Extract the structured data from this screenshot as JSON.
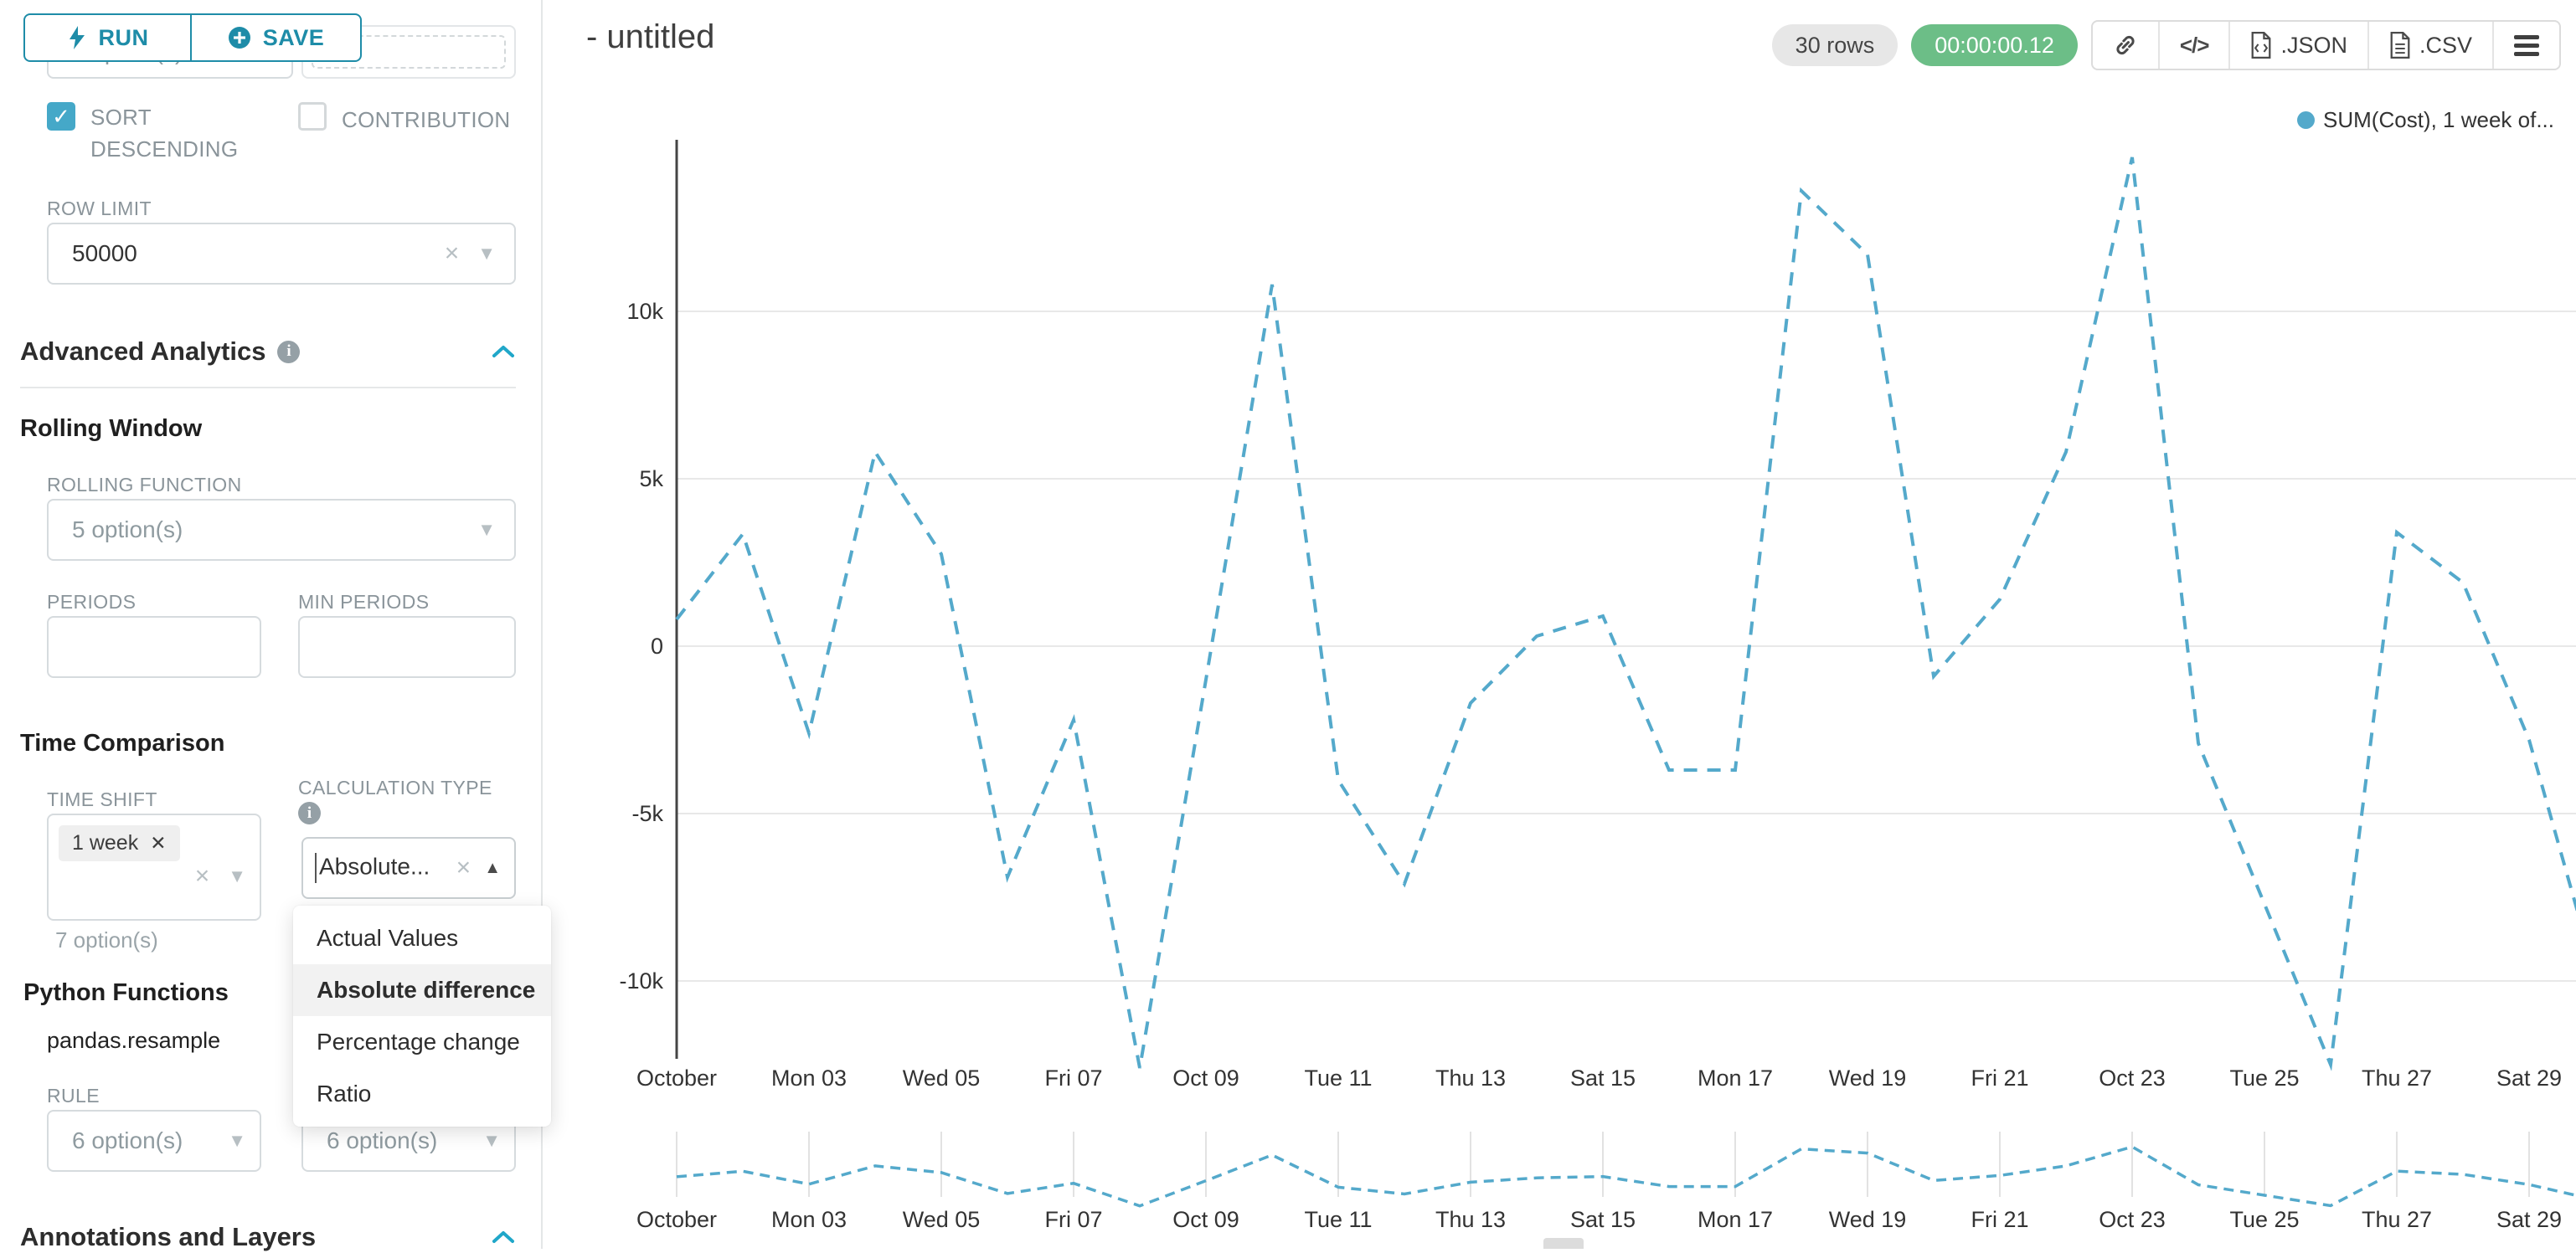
{
  "header": {
    "title": "- untitled",
    "rows_badge": "30 rows",
    "timer_badge": "00:00:00.12",
    "toolbar": {
      "code_label": "</>",
      "json_label": ".JSON",
      "csv_label": ".CSV"
    }
  },
  "panel": {
    "run_label": "RUN",
    "save_label": "SAVE",
    "top_left_select_value": "7 option(s)",
    "sort_descending_label": "SORT DESCENDING",
    "contribution_label": "CONTRIBUTION",
    "row_limit": {
      "label": "ROW LIMIT",
      "value": "50000"
    },
    "advanced_analytics": {
      "title": "Advanced Analytics"
    },
    "rolling_window": {
      "title": "Rolling Window",
      "rolling_function_label": "ROLLING FUNCTION",
      "rolling_function_value": "5 option(s)",
      "periods_label": "PERIODS",
      "min_periods_label": "MIN PERIODS"
    },
    "time_comparison": {
      "title": "Time Comparison",
      "time_shift_label": "TIME SHIFT",
      "time_shift_tag": "1 week",
      "time_shift_helper": "7 option(s)",
      "calculation_type_label": "CALCULATION TYPE",
      "calculation_type_value": "Absolute...",
      "dropdown_options": [
        "Actual Values",
        "Absolute difference",
        "Percentage change",
        "Ratio"
      ],
      "dropdown_selected": "Absolute difference"
    },
    "python_functions": {
      "title": "Python Functions",
      "subtitle": "pandas.resample",
      "rule_label": "RULE",
      "rule_value": "6 option(s)",
      "second_value": "6 option(s)"
    },
    "annotations": {
      "title": "Annotations and Layers"
    }
  },
  "chart_data": {
    "type": "line",
    "series": [
      {
        "name": "SUM(Cost), 1 week of...",
        "color": "#54a9cb",
        "dashed": true,
        "values": [
          800,
          3350,
          -2600,
          5800,
          2750,
          -6900,
          -2200,
          -12600,
          -1000,
          10800,
          -4000,
          -7100,
          -1700,
          300,
          900,
          -3700,
          -3700,
          13600,
          11700,
          -900,
          1400,
          5800,
          14600,
          -2900,
          -7700,
          -12500,
          3400,
          1900,
          -2800,
          -9800
        ]
      }
    ],
    "x_tick_labels": [
      "October",
      "Mon 03",
      "Wed 05",
      "Fri 07",
      "Oct 09",
      "Tue 11",
      "Thu 13",
      "Sat 15",
      "Mon 17",
      "Wed 19",
      "Fri 21",
      "Oct 23",
      "Tue 25",
      "Thu 27",
      "Sat 29"
    ],
    "x_tick_step_points": 2,
    "y_tick_labels": [
      "10k",
      "5k",
      "0",
      "-5k",
      "-10k"
    ],
    "y_tick_values": [
      10000,
      5000,
      0,
      -5000,
      -10000
    ],
    "ylim": [
      -12500,
      15200
    ],
    "grid": true,
    "legend_position": "top-right",
    "has_mini_map": true
  }
}
